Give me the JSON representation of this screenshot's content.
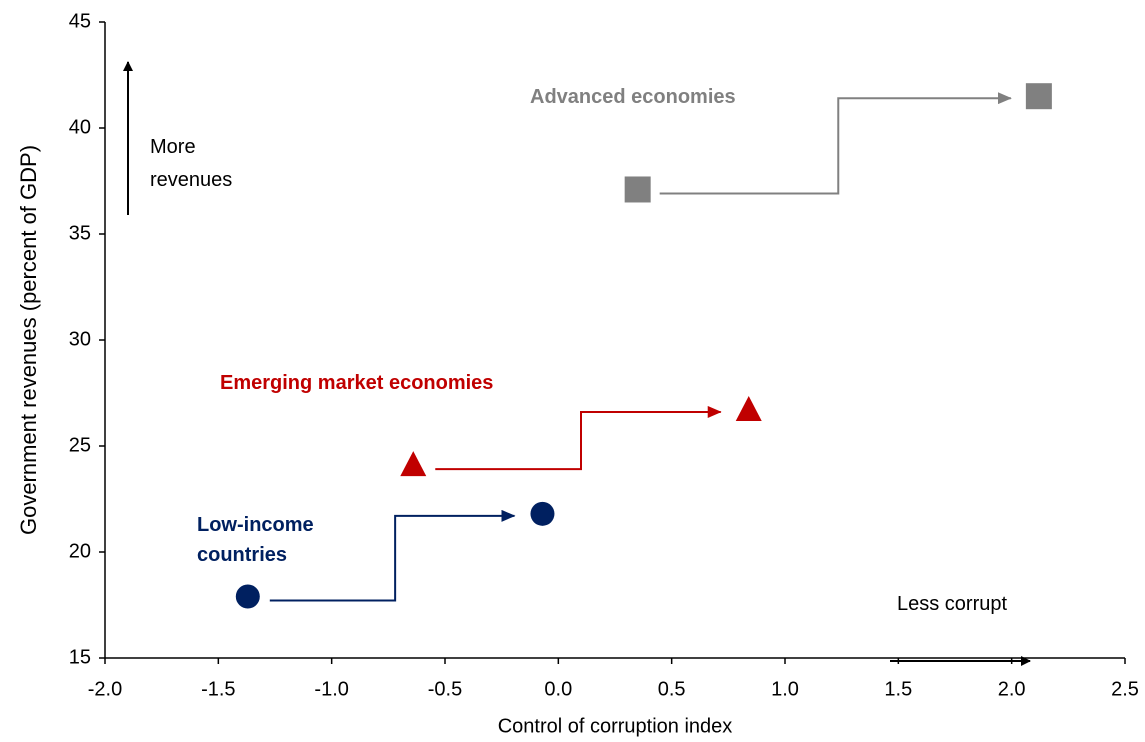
{
  "chart_data": {
    "type": "scatter",
    "x_label": "Control of corruption index",
    "y_label": "Government revenues (percent of GDP)",
    "xlim": [
      -2.0,
      2.5
    ],
    "xticks": [
      {
        "value": -2.0,
        "label": "-2.0"
      },
      -1.5,
      {
        "value": -1.0,
        "label": "-1.0"
      },
      -0.5,
      {
        "value": 0.0,
        "label": "0.0"
      },
      0.5,
      {
        "value": 1.0,
        "label": "1.0"
      },
      1.5,
      {
        "value": 2.0,
        "label": "2.0"
      },
      2.5
    ],
    "ylim": [
      15,
      45
    ],
    "yticks": [
      15,
      20,
      25,
      30,
      35,
      40,
      45
    ],
    "grid": false,
    "annotations": [
      "More revenues",
      "Less corrupt"
    ],
    "series": [
      {
        "name": "Low-income countries",
        "color": "#002060",
        "marker": "circle",
        "x": [
          -1.37,
          -0.07
        ],
        "values": [
          17.9,
          21.8
        ]
      },
      {
        "name": "Emerging market economies",
        "color": "#c00000",
        "marker": "triangle",
        "x": [
          -0.64,
          0.84
        ],
        "values": [
          24.1,
          26.7
        ]
      },
      {
        "name": "Advanced economies",
        "color": "#808080",
        "marker": "square",
        "x": [
          0.35,
          2.12
        ],
        "values": [
          37.1,
          41.5
        ]
      }
    ]
  }
}
